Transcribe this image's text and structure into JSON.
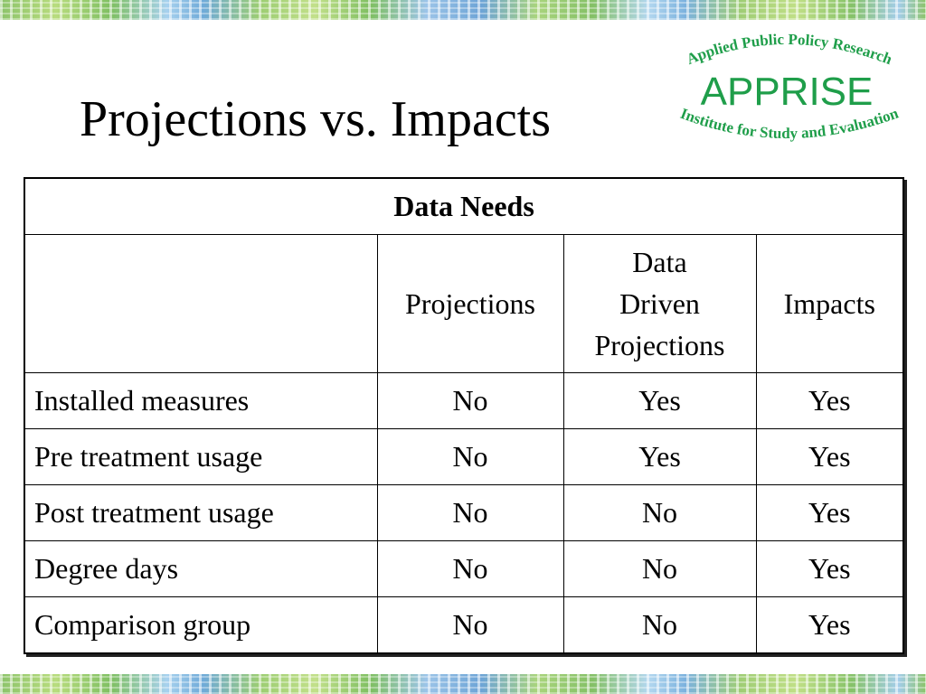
{
  "slide": {
    "title": "Projections vs. Impacts"
  },
  "logo": {
    "top_text": "Applied Public Policy Research",
    "name": "APPRISE",
    "bottom_text": "Institute for Study and Evaluation",
    "color": "#1f9e4a"
  },
  "table": {
    "caption": "Data Needs",
    "columns": [
      "",
      "Projections",
      "Data Driven Projections",
      "Impacts"
    ],
    "column_lines": {
      "data_driven": [
        "Data",
        "Driven",
        "Projections"
      ]
    },
    "rows": [
      {
        "label": "Installed measures",
        "projections": "No",
        "data_driven": "Yes",
        "impacts": "Yes"
      },
      {
        "label": "Pre treatment usage",
        "projections": "No",
        "data_driven": "Yes",
        "impacts": "Yes"
      },
      {
        "label": "Post treatment usage",
        "projections": "No",
        "data_driven": "No",
        "impacts": "Yes"
      },
      {
        "label": "Degree days",
        "projections": "No",
        "data_driven": "No",
        "impacts": "Yes"
      },
      {
        "label": "Comparison group",
        "projections": "No",
        "data_driven": "No",
        "impacts": "Yes"
      }
    ]
  }
}
